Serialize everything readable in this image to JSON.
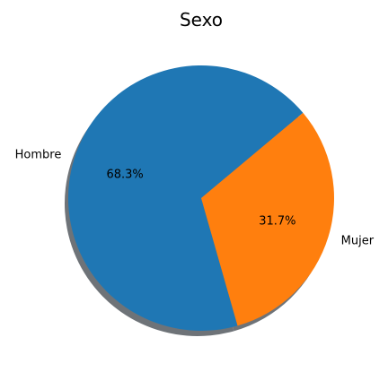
{
  "chart_data": {
    "type": "pie",
    "title": "Sexo",
    "labels": [
      "Hombre",
      "Mujer"
    ],
    "values": [
      68.3,
      31.7
    ],
    "percent_labels": [
      "68.3%",
      "31.7%"
    ],
    "colors": [
      "#1f77b4",
      "#ff7f0e"
    ],
    "start_angle_deg": 40,
    "shadow": true,
    "legend": "none"
  }
}
